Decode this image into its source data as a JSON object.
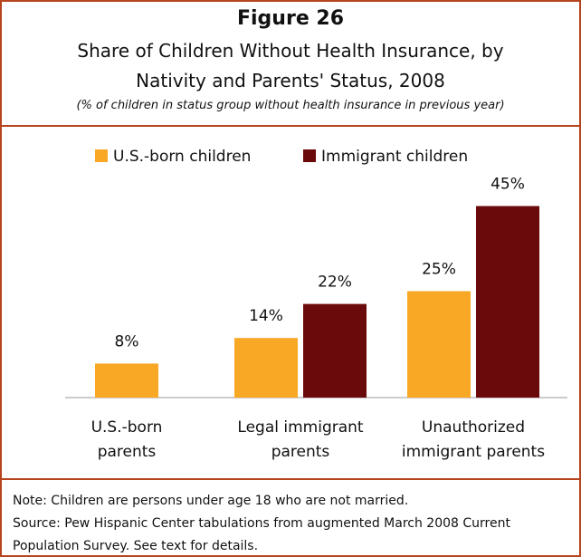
{
  "chart_data": {
    "type": "bar",
    "figure": "Figure 26",
    "title": "Share of Children Without Health Insurance, by Nativity and Parents' Status, 2008",
    "subtitle": "(% of children in status group without health insurance in previous year)",
    "categories": [
      "U.S.-born parents",
      "Legal immigrant parents",
      "Unauthorized immigrant parents"
    ],
    "series": [
      {
        "name": "U.S.-born children",
        "color": "#f9a825",
        "values": [
          8,
          14,
          25
        ],
        "value_labels": [
          "8%",
          "14%",
          "25%"
        ]
      },
      {
        "name": "Immigrant children",
        "color": "#6b0a0a",
        "values": [
          null,
          22,
          45
        ],
        "value_labels": [
          null,
          "22%",
          "45%"
        ]
      }
    ],
    "legend": "top",
    "note": "Note: Children are persons under age 18 who are not married.",
    "source": "Source: Pew Hispanic Center tabulations from augmented March 2008 Current Population Survey.  See text for details."
  }
}
